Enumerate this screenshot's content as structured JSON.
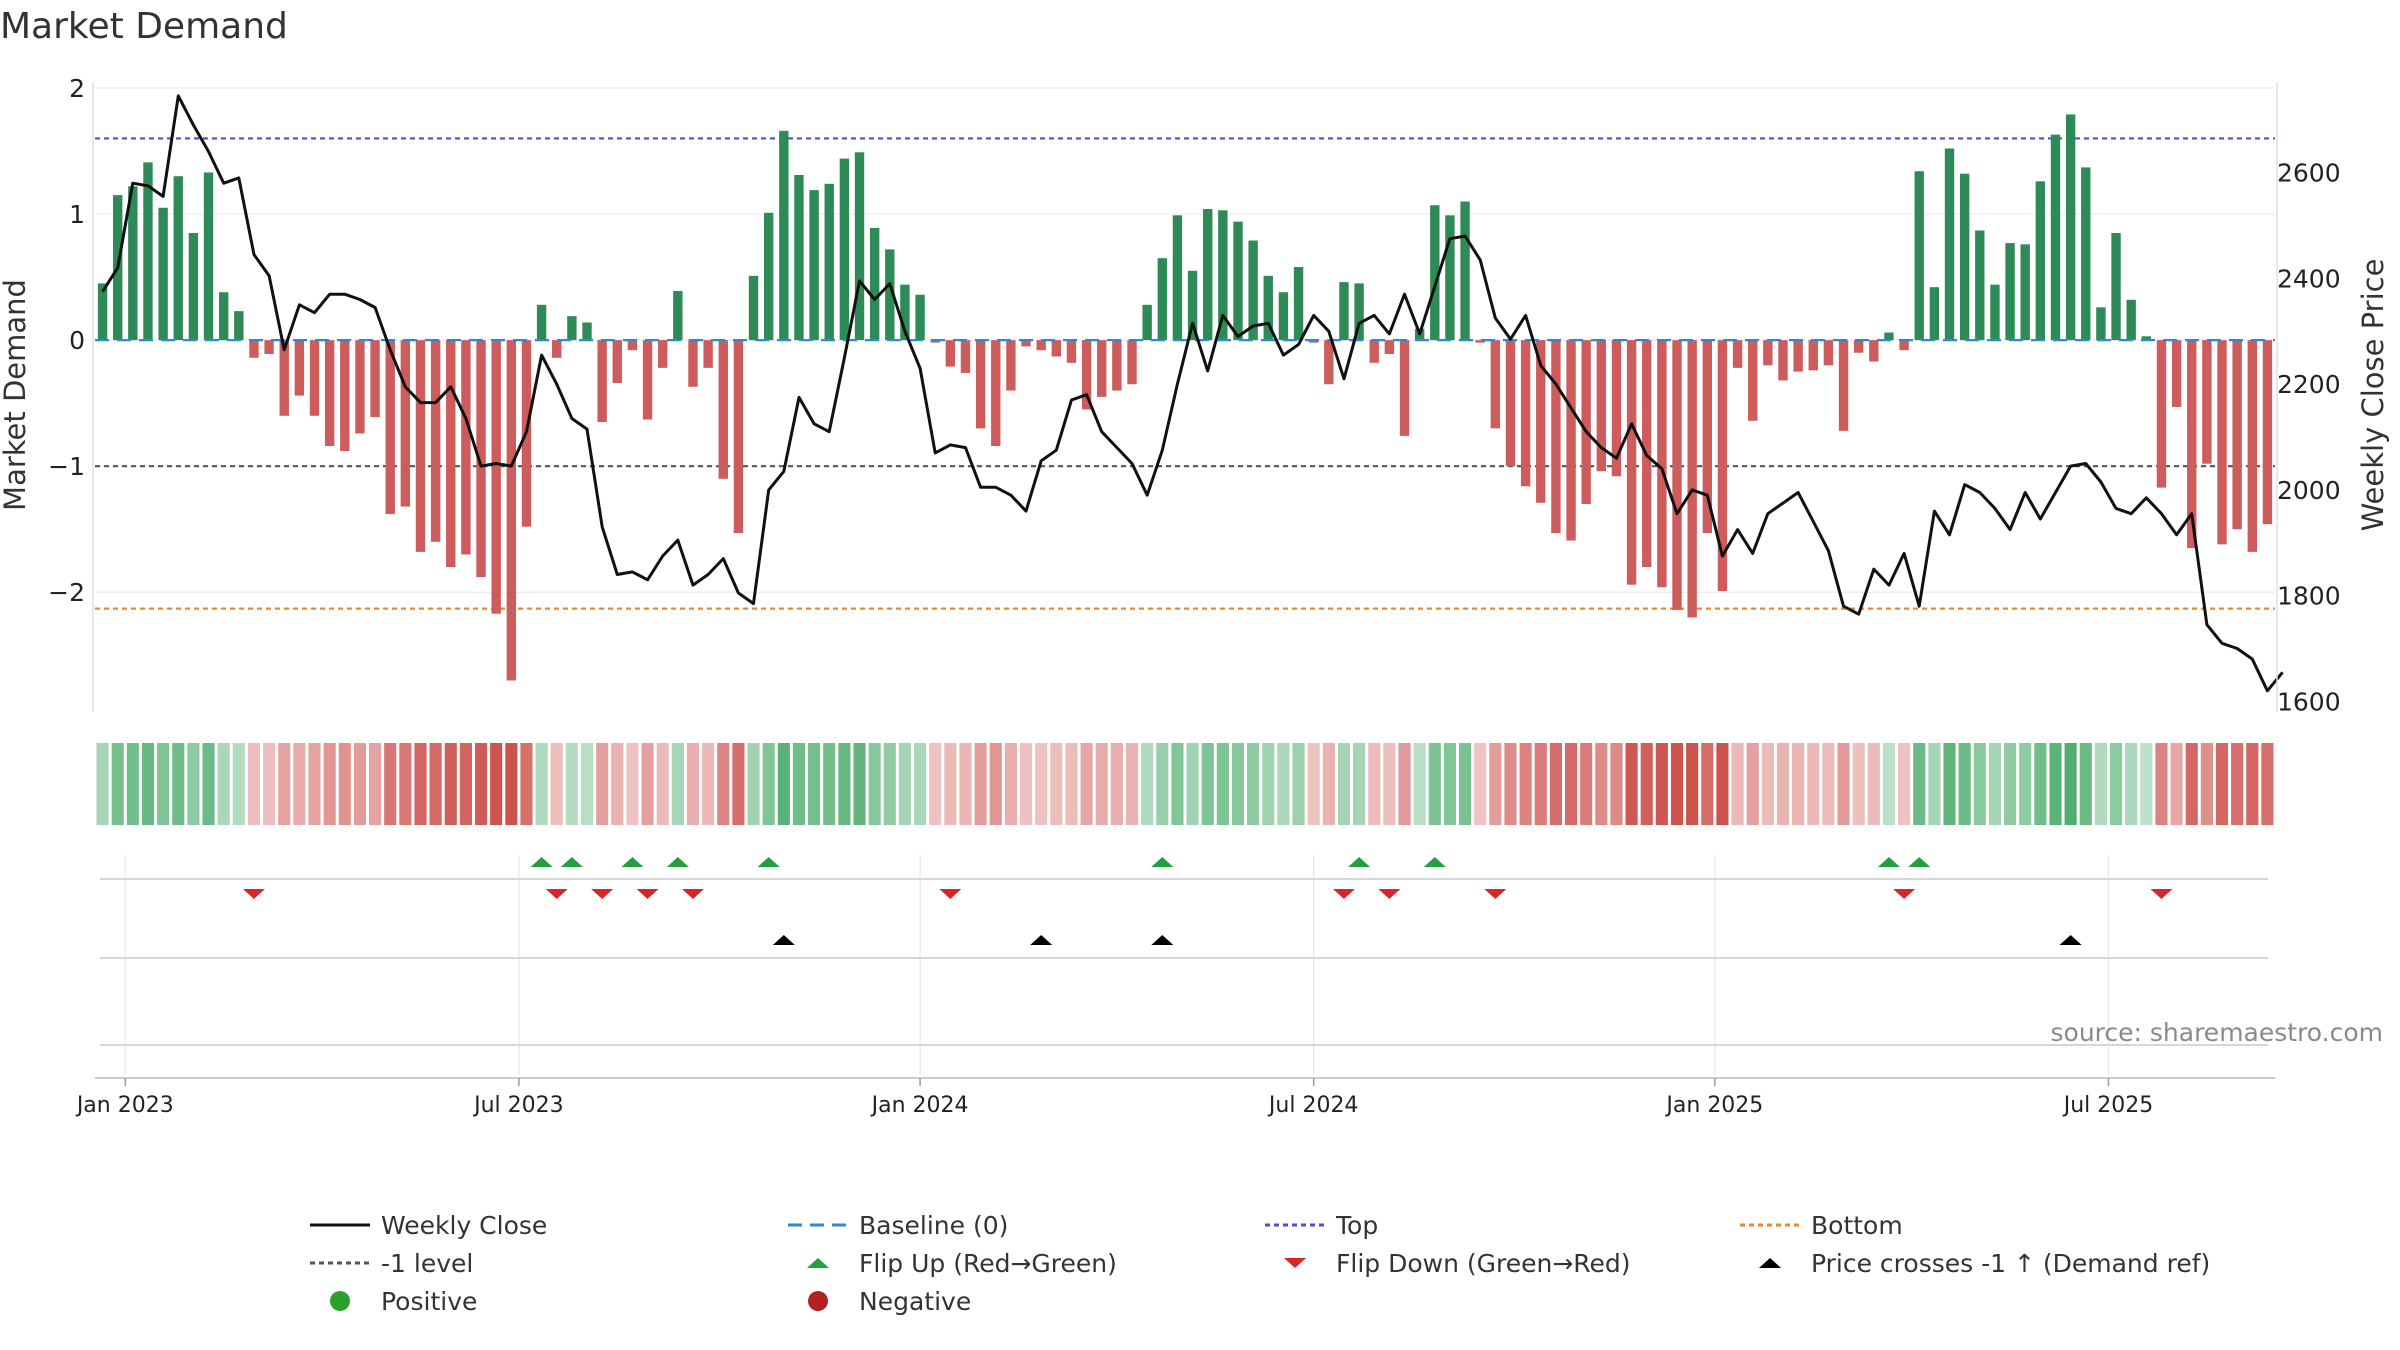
{
  "chart_data": {
    "type": "bar",
    "title": "Market Demand",
    "ylabel_left": "Market Demand",
    "ylabel_right": "Weekly Close Price",
    "ylim_left": [
      -2.95,
      2.0
    ],
    "ylim_right": [
      1580,
      2760
    ],
    "left_ticks": [
      {
        "v": 2,
        "label": "2"
      },
      {
        "v": 1,
        "label": "1"
      },
      {
        "v": 0,
        "label": "0"
      },
      {
        "v": -1,
        "label": "−1"
      },
      {
        "v": -2,
        "label": "−2"
      }
    ],
    "right_ticks": [
      {
        "v": 2600,
        "label": "2600"
      },
      {
        "v": 2400,
        "label": "2400"
      },
      {
        "v": 2200,
        "label": "2200"
      },
      {
        "v": 2000,
        "label": "2000"
      },
      {
        "v": 1800,
        "label": "1800"
      },
      {
        "v": 1600,
        "label": "1600"
      }
    ],
    "x_ticks": [
      {
        "i": 1.5,
        "label": "Jan 2023"
      },
      {
        "i": 27.5,
        "label": "Jul 2023"
      },
      {
        "i": 54,
        "label": "Jan 2024"
      },
      {
        "i": 80,
        "label": "Jul 2024"
      },
      {
        "i": 106.5,
        "label": "Jan 2025"
      },
      {
        "i": 132.5,
        "label": "Jul 2025"
      }
    ],
    "reference_lines": {
      "top": 1.6,
      "minus_one": -1.0,
      "bottom": -2.13,
      "baseline": 0
    },
    "grid": true,
    "legend_position": "bottom",
    "demand": [
      0.45,
      1.15,
      1.22,
      1.41,
      1.05,
      1.3,
      0.85,
      1.33,
      0.38,
      0.23,
      -0.14,
      -0.11,
      -0.6,
      -0.44,
      -0.6,
      -0.84,
      -0.88,
      -0.74,
      -0.61,
      -1.38,
      -1.32,
      -1.68,
      -1.6,
      -1.8,
      -1.7,
      -1.88,
      -2.17,
      -2.7,
      -1.48,
      0.28,
      -0.14,
      0.19,
      0.14,
      -0.65,
      -0.34,
      -0.08,
      -0.63,
      -0.22,
      0.39,
      -0.37,
      -0.22,
      -1.1,
      -1.53,
      0.51,
      1.01,
      1.66,
      1.31,
      1.19,
      1.24,
      1.44,
      1.49,
      0.89,
      0.72,
      0.44,
      0.36,
      -0.02,
      -0.21,
      -0.26,
      -0.7,
      -0.84,
      -0.4,
      -0.05,
      -0.08,
      -0.13,
      -0.18,
      -0.55,
      -0.45,
      -0.4,
      -0.35,
      0.28,
      0.65,
      0.99,
      0.55,
      1.04,
      1.03,
      0.94,
      0.79,
      0.51,
      0.38,
      0.58,
      -0.02,
      -0.35,
      0.46,
      0.45,
      -0.18,
      -0.11,
      -0.76,
      0.09,
      1.07,
      0.99,
      1.1,
      -0.02,
      -0.7,
      -1.0,
      -1.16,
      -1.29,
      -1.53,
      -1.59,
      -1.3,
      -1.04,
      -1.08,
      -1.94,
      -1.8,
      -1.96,
      -2.14,
      -2.2,
      -1.53,
      -1.99,
      -0.22,
      -0.64,
      -0.2,
      -0.32,
      -0.25,
      -0.24,
      -0.2,
      -0.72,
      -0.1,
      -0.17,
      0.06,
      -0.08,
      1.34,
      0.42,
      1.52,
      1.32,
      0.87,
      0.44,
      0.77,
      0.76,
      1.26,
      1.63,
      1.79,
      1.37,
      0.26,
      0.85,
      0.32,
      0.03,
      -1.17,
      -0.53,
      -1.65,
      -0.98,
      -1.62,
      -1.5,
      -1.68,
      -1.46
    ],
    "price": [
      2375,
      2420,
      2580,
      2575,
      2555,
      2745,
      2690,
      2640,
      2580,
      2590,
      2445,
      2405,
      2265,
      2350,
      2335,
      2370,
      2370,
      2360,
      2345,
      2265,
      2195,
      2165,
      2165,
      2195,
      2135,
      2045,
      2050,
      2045,
      2110,
      2255,
      2200,
      2135,
      2115,
      1930,
      1840,
      1845,
      1830,
      1875,
      1905,
      1820,
      1840,
      1870,
      1805,
      1785,
      2000,
      2035,
      2175,
      2125,
      2110,
      2250,
      2395,
      2360,
      2390,
      2300,
      2230,
      2070,
      2085,
      2080,
      2005,
      2005,
      1990,
      1960,
      2055,
      2075,
      2170,
      2180,
      2110,
      2080,
      2050,
      1990,
      2075,
      2200,
      2315,
      2225,
      2330,
      2290,
      2310,
      2315,
      2255,
      2275,
      2330,
      2300,
      2210,
      2315,
      2330,
      2295,
      2370,
      2295,
      2385,
      2475,
      2480,
      2435,
      2325,
      2285,
      2330,
      2235,
      2200,
      2155,
      2110,
      2080,
      2060,
      2125,
      2065,
      2040,
      1955,
      2000,
      1990,
      1875,
      1925,
      1880,
      1955,
      1975,
      1995,
      1940,
      1885,
      1780,
      1765,
      1850,
      1820,
      1880,
      1780,
      1960,
      1915,
      2010,
      1995,
      1965,
      1925,
      1995,
      1945,
      1995,
      2045,
      2050,
      2015,
      1965,
      1955,
      1985,
      1955,
      1915,
      1955,
      1745,
      1710,
      1700,
      1680,
      1620,
      1655
    ],
    "flip_up": [
      29,
      31,
      35,
      38,
      44,
      70,
      83,
      88,
      118,
      120
    ],
    "flip_down": [
      10,
      30,
      33,
      36,
      39,
      56,
      82,
      85,
      92,
      119,
      136
    ],
    "price_cross": [
      45,
      62,
      70,
      130
    ],
    "legend": [
      {
        "key": "weekly_close",
        "label": "Weekly Close",
        "color": "#111111",
        "icon": "solid-line-icon"
      },
      {
        "key": "baseline",
        "label": "Baseline (0)",
        "color": "#2a8ad4",
        "icon": "dashed-line-icon"
      },
      {
        "key": "top",
        "label": "Top",
        "color": "#4b4fd0",
        "icon": "dotted-line-icon"
      },
      {
        "key": "bottom",
        "label": "Bottom",
        "color": "#f0862a",
        "icon": "dotted-line-icon"
      },
      {
        "key": "minus_one",
        "label": "-1 level",
        "color": "#555555",
        "icon": "dotted-line-icon"
      },
      {
        "key": "flip_up",
        "label": "Flip Up (Red→Green)",
        "color": "#22a03f",
        "icon": "triangle-up-icon"
      },
      {
        "key": "flip_down",
        "label": "Flip Down (Green→Red)",
        "color": "#d62728",
        "icon": "triangle-down-icon"
      },
      {
        "key": "price_cross",
        "label": "Price crosses -1 ↑ (Demand ref)",
        "color": "#000000",
        "icon": "triangle-up-icon"
      },
      {
        "key": "positive",
        "label": "Positive",
        "color": "#2ca02c",
        "icon": "circle-icon"
      },
      {
        "key": "negative",
        "label": "Negative",
        "color": "#b22222",
        "icon": "circle-icon"
      }
    ],
    "source": "source: sharemaestro.com",
    "colors": {
      "positive_bar": "#2e8b57",
      "negative_bar": "#cd5c5c",
      "heat_pos": "#2e9e52",
      "heat_neg": "#c8403c"
    }
  }
}
